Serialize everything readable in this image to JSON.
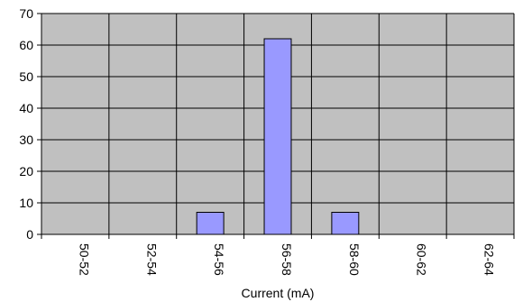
{
  "chart_data": {
    "type": "bar",
    "title": "",
    "xlabel": "Current (mA)",
    "ylabel": "",
    "categories": [
      "50-52",
      "52-54",
      "54-56",
      "56-58",
      "58-60",
      "60-62",
      "62-64"
    ],
    "values": [
      0,
      0,
      7,
      62,
      7,
      0,
      0
    ],
    "ylim": [
      0,
      70
    ],
    "yticks": [
      0,
      10,
      20,
      30,
      40,
      50,
      60,
      70
    ],
    "grid": true,
    "legend": "none",
    "colors": {
      "plot_background": "#c0c0c0",
      "bar_fill": "#9999ff",
      "bar_stroke": "#000000",
      "grid": "#000000"
    }
  }
}
